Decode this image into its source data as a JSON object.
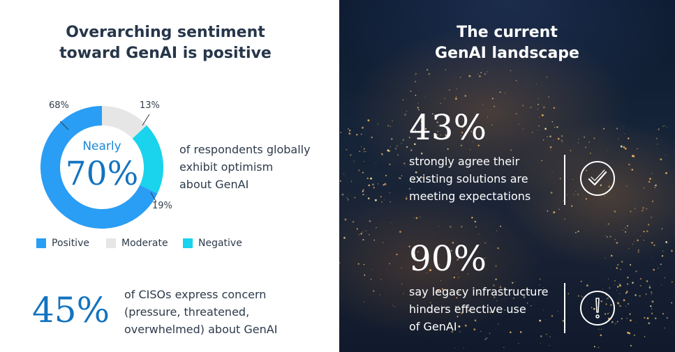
{
  "left": {
    "title_line1": "Overarching sentiment",
    "title_line2": "toward GenAI is positive",
    "center_label": "Nearly",
    "center_value": "70%",
    "optimism_desc": [
      "of respondents globally",
      "exhibit optimism",
      "about GenAI"
    ],
    "ciso_stat": "45%",
    "ciso_desc": [
      "of CISOs express concern",
      "(pressure, threatened,",
      "overwhelmed) about GenAI"
    ]
  },
  "chart_data": {
    "type": "pie",
    "style": "donut",
    "title": "",
    "categories": [
      "Positive",
      "Moderate",
      "Negative"
    ],
    "values": [
      68,
      13,
      19
    ],
    "value_labels": [
      "68%",
      "13%",
      "19%"
    ],
    "colors": [
      "#2a9df4",
      "#e6e6e6",
      "#1ad3ec"
    ],
    "legend_position": "bottom"
  },
  "right": {
    "title_line1": "The current",
    "title_line2": "GenAI landscape",
    "stat1": "43%",
    "stat1_desc": [
      "strongly agree their",
      "existing solutions are",
      "meeting expectations"
    ],
    "stat1_icon": "checkmark-circle-icon",
    "stat2": "90%",
    "stat2_desc": [
      "say legacy infrastructure",
      "hinders effective use",
      "of GenAI"
    ],
    "stat2_icon": "exclamation-circle-icon"
  }
}
